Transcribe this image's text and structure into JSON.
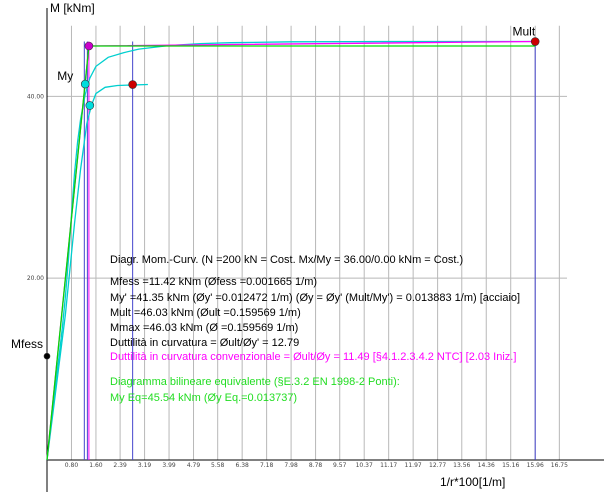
{
  "chart_data": {
    "type": "line",
    "ylabel": "M [kNm]",
    "xlabel": "1/r*100[1/m]",
    "xlim": [
      0,
      17.0
    ],
    "ylim": [
      0,
      49.5
    ],
    "x_ticks": [
      "0.80",
      "1.60",
      "2.39",
      "3.19",
      "3.99",
      "4.79",
      "5.58",
      "6.38",
      "7.18",
      "7.98",
      "8.78",
      "9.57",
      "10.37",
      "11.17",
      "11.97",
      "12.77",
      "13.56",
      "14.36",
      "15.16",
      "15.96",
      "16.75"
    ],
    "y_ticks": [
      {
        "label": "20.00",
        "value": 20.0
      },
      {
        "label": "40.00",
        "value": 40.0
      }
    ],
    "series": [
      {
        "color": "#00cfcf",
        "points": [
          [
            0,
            0
          ],
          [
            0.1,
            3
          ],
          [
            0.2,
            6
          ],
          [
            0.3,
            9
          ],
          [
            0.4,
            11.5
          ],
          [
            0.5,
            14.5
          ],
          [
            0.6,
            18
          ],
          [
            0.7,
            22
          ],
          [
            0.8,
            27
          ],
          [
            0.9,
            31.5
          ],
          [
            1.0,
            35
          ],
          [
            1.1,
            37.5
          ],
          [
            1.2,
            39.3
          ],
          [
            1.25,
            40.2
          ],
          [
            1.4,
            42.0
          ],
          [
            1.6,
            43.3
          ],
          [
            2.0,
            44.3
          ],
          [
            2.5,
            44.8
          ],
          [
            3.0,
            45.2
          ],
          [
            4.0,
            45.6
          ],
          [
            5.0,
            45.8
          ],
          [
            6.0,
            45.9
          ],
          [
            8.0,
            46.0
          ],
          [
            10.0,
            46.02
          ],
          [
            15.96,
            46.03
          ]
        ]
      },
      {
        "color": "#00cfcf",
        "points": [
          [
            0,
            0
          ],
          [
            0.3,
            8
          ],
          [
            0.6,
            16
          ],
          [
            0.9,
            26
          ],
          [
            1.1,
            32
          ],
          [
            1.3,
            37
          ],
          [
            1.45,
            39.0
          ],
          [
            1.6,
            40.3
          ],
          [
            1.9,
            41.0
          ],
          [
            2.3,
            41.2
          ],
          [
            3.3,
            41.3
          ]
        ]
      },
      {
        "color": "#ff00ff",
        "points": [
          [
            0,
            0
          ],
          [
            1.37,
            45.54
          ],
          [
            15.96,
            46.03
          ]
        ]
      },
      {
        "color": "#00dd00",
        "points": [
          [
            0,
            0
          ],
          [
            1.37,
            45.54
          ],
          [
            15.96,
            45.54
          ]
        ]
      }
    ],
    "markers": [
      {
        "label": "Mult",
        "x": 15.96,
        "y": 46.03,
        "color": "#cc0000"
      },
      {
        "label": "My",
        "x": 1.25,
        "y": 41.35,
        "color": "#00dddd"
      },
      {
        "label": "",
        "x": 1.4,
        "y": 39.0,
        "color": "#00dddd"
      },
      {
        "label": "",
        "x": 1.37,
        "y": 45.54,
        "color": "#cc00cc"
      },
      {
        "label": "",
        "x": 2.8,
        "y": 41.3,
        "color": "#cc0000"
      },
      {
        "label": "Mfess",
        "x": 0.0,
        "y": 11.42,
        "color": "#000000"
      }
    ],
    "vertical_lines": [
      {
        "x": 1.22,
        "color": "#4444cc"
      },
      {
        "x": 1.32,
        "color": "#4444cc"
      },
      {
        "x": 1.37,
        "color": "#ff00ff"
      },
      {
        "x": 2.8,
        "color": "#4444cc"
      },
      {
        "x": 15.96,
        "color": "#4444cc"
      }
    ],
    "annotations": [
      {
        "text": "Diagr. Mom.-Curv. (N =200 kN = Cost. Mx/My = 36.00/0.00 kNm = Cost.)",
        "color": "#000000"
      },
      {
        "text": "Mfess =11.42 kNm  (Øfess =0.001665 1/m)",
        "color": "#000000"
      },
      {
        "text": "My' =41.35 kNm  (Øy' =0.012472 1/m)  (Øy = Øy' (Mult/My') = 0.013883 1/m) [acciaio]",
        "color": "#000000"
      },
      {
        "text": "Mult =46.03 kNm  (Øult =0.159569 1/m)",
        "color": "#000000"
      },
      {
        "text": "Mmax =46.03 kNm  (Ø =0.159569 1/m)",
        "color": "#000000"
      },
      {
        "text": "Duttilità in curvatura = Øult/Øy' = 12.79",
        "color": "#000000"
      },
      {
        "text": "Duttilità in curvatura convenzionale = Øult/Øy = 11.49  [§4.1.2.3.4.2 NTC] [2.03  Iniz.]",
        "color": "#ff00ff"
      },
      {
        "text": "Diagramma bilineare equivalente (§E.3.2 EN 1998-2 Ponti):",
        "color": "#22dd22"
      },
      {
        "text": "My Eq=45.54 kNm  (Øy Eq.=0.013737)",
        "color": "#22dd22"
      }
    ]
  }
}
